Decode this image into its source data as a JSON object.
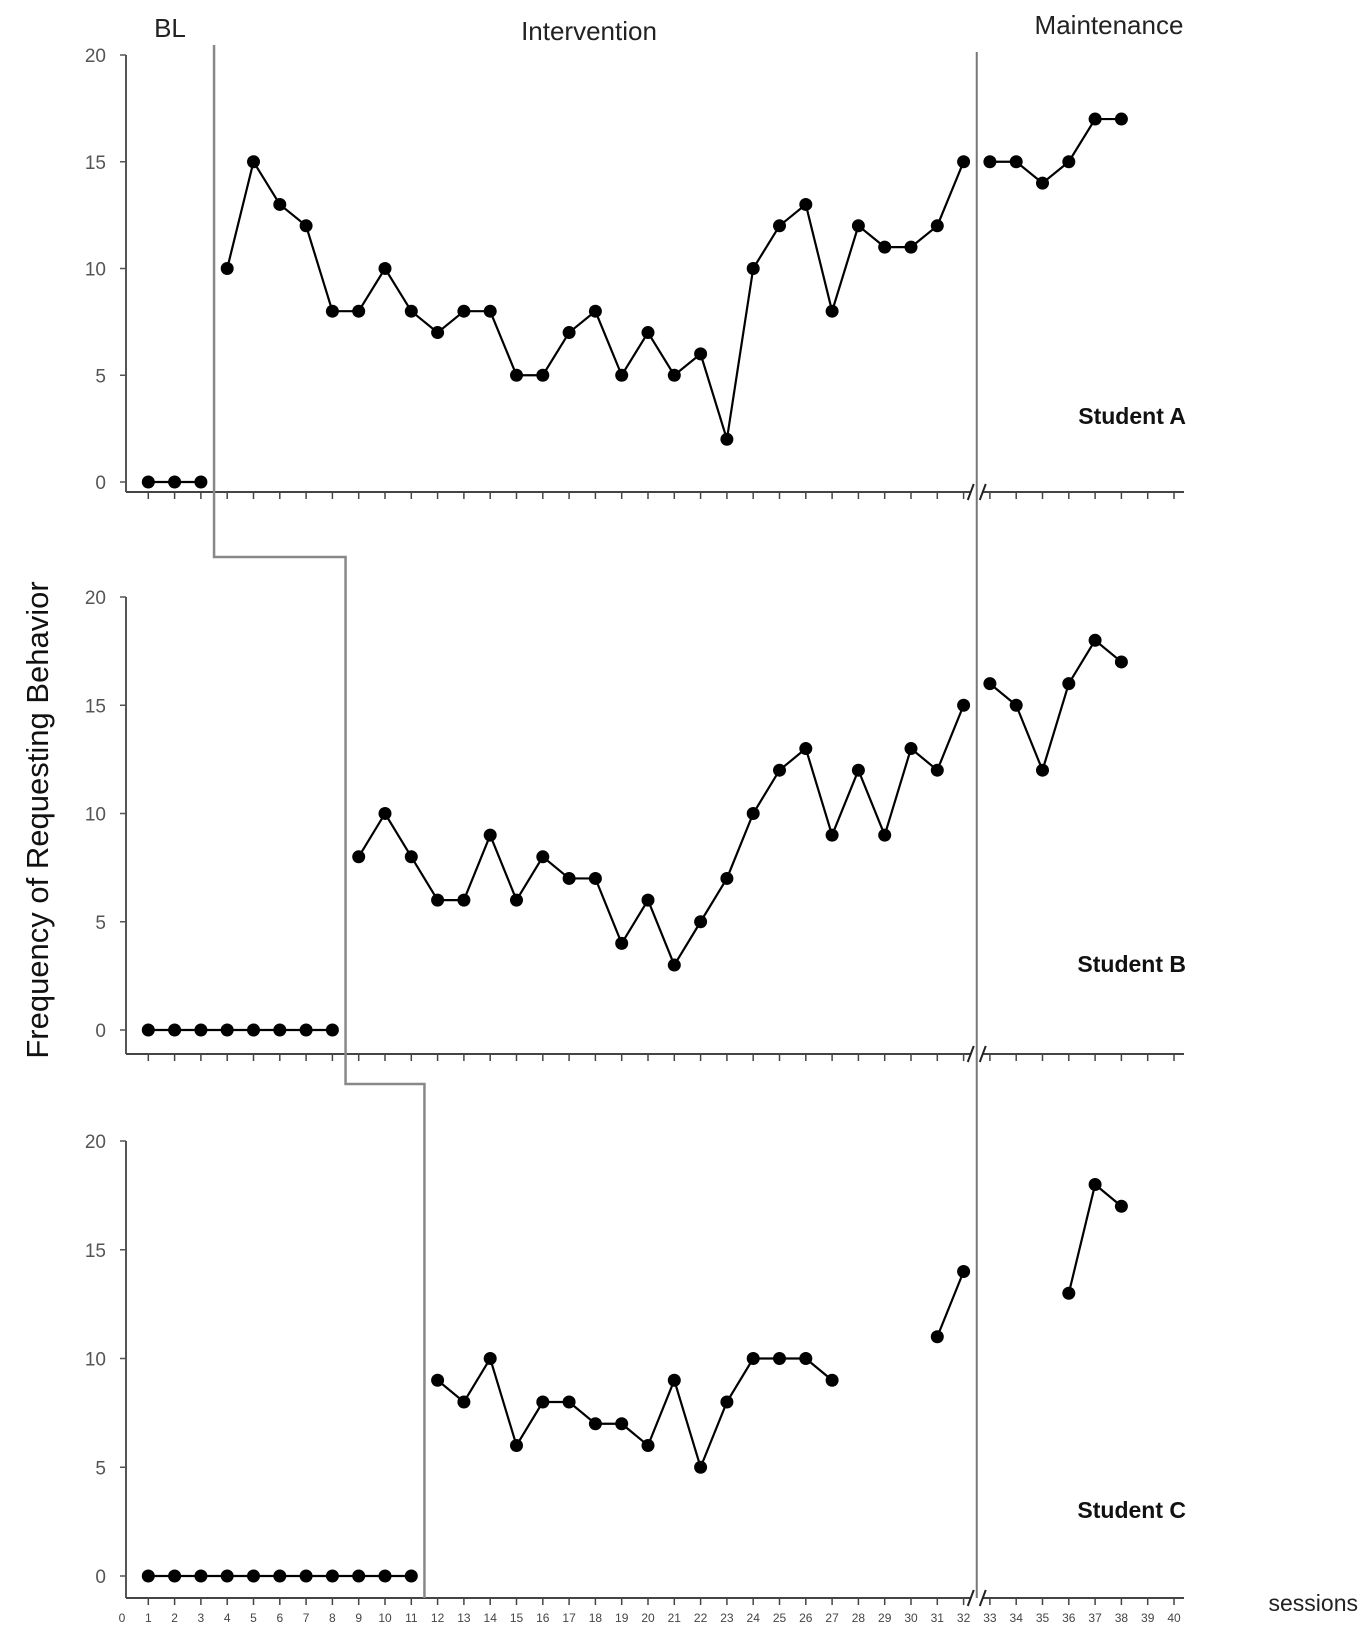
{
  "chart_data": {
    "type": "line",
    "ylabel": "Frequency of Requesting Behavior",
    "xlabel": "sessions",
    "phases": [
      "BL",
      "Intervention",
      "Maintenance"
    ],
    "ylim": [
      0,
      20
    ],
    "yticks": [
      0,
      5,
      10,
      15,
      20
    ],
    "xlim": [
      0,
      40
    ],
    "xticks": [
      0,
      1,
      2,
      3,
      4,
      5,
      6,
      7,
      8,
      9,
      10,
      11,
      12,
      13,
      14,
      15,
      16,
      17,
      18,
      19,
      20,
      21,
      22,
      23,
      24,
      25,
      26,
      27,
      28,
      29,
      30,
      31,
      32,
      33,
      34,
      35,
      36,
      37,
      38,
      39,
      40
    ],
    "panels": [
      {
        "label": "Student A",
        "baseline_last_session": 3,
        "maintenance_first_session": 33,
        "segments": [
          {
            "x": [
              1,
              2,
              3
            ],
            "y": [
              0,
              0,
              0
            ]
          },
          {
            "x": [
              4,
              5,
              6,
              7,
              8,
              9,
              10,
              11,
              12,
              13,
              14,
              15,
              16,
              17,
              18,
              19,
              20,
              21,
              22,
              23,
              24,
              25,
              26,
              27,
              28,
              29,
              30,
              31,
              32
            ],
            "y": [
              10,
              15,
              13,
              12,
              8,
              8,
              10,
              8,
              7,
              8,
              8,
              5,
              5,
              7,
              8,
              5,
              7,
              5,
              6,
              2,
              10,
              12,
              13,
              8,
              12,
              11,
              11,
              12,
              15
            ]
          },
          {
            "x": [
              33,
              34,
              35,
              36,
              37,
              38
            ],
            "y": [
              15,
              15,
              14,
              15,
              17,
              17
            ]
          }
        ]
      },
      {
        "label": "Student B",
        "baseline_last_session": 8,
        "maintenance_first_session": 33,
        "segments": [
          {
            "x": [
              1,
              2,
              3,
              4,
              5,
              6,
              7,
              8
            ],
            "y": [
              0,
              0,
              0,
              0,
              0,
              0,
              0,
              0
            ]
          },
          {
            "x": [
              9,
              10,
              11,
              12,
              13,
              14,
              15,
              16,
              17,
              18,
              19,
              20,
              21,
              22,
              23,
              24,
              25,
              26,
              27,
              28,
              29,
              30,
              31,
              32
            ],
            "y": [
              8,
              10,
              8,
              6,
              6,
              9,
              6,
              8,
              7,
              7,
              4,
              6,
              3,
              5,
              7,
              10,
              12,
              13,
              9,
              12,
              9,
              13,
              12,
              15
            ]
          },
          {
            "x": [
              33,
              34,
              35,
              36,
              37,
              38
            ],
            "y": [
              16,
              15,
              12,
              16,
              18,
              17
            ]
          }
        ]
      },
      {
        "label": "Student C",
        "baseline_last_session": 11,
        "maintenance_first_session": 33,
        "segments": [
          {
            "x": [
              1,
              2,
              3,
              4,
              5,
              6,
              7,
              8,
              9,
              10,
              11
            ],
            "y": [
              0,
              0,
              0,
              0,
              0,
              0,
              0,
              0,
              0,
              0,
              0
            ]
          },
          {
            "x": [
              12,
              13,
              14,
              15,
              16,
              17,
              18,
              19,
              20,
              21,
              22,
              23,
              24,
              25,
              26,
              27
            ],
            "y": [
              9,
              8,
              10,
              6,
              8,
              8,
              7,
              7,
              6,
              9,
              5,
              8,
              10,
              10,
              10,
              9
            ]
          },
          {
            "x": [
              31,
              32
            ],
            "y": [
              11,
              14
            ]
          },
          {
            "x": [
              36,
              37,
              38
            ],
            "y": [
              13,
              18,
              17
            ]
          }
        ]
      }
    ]
  }
}
